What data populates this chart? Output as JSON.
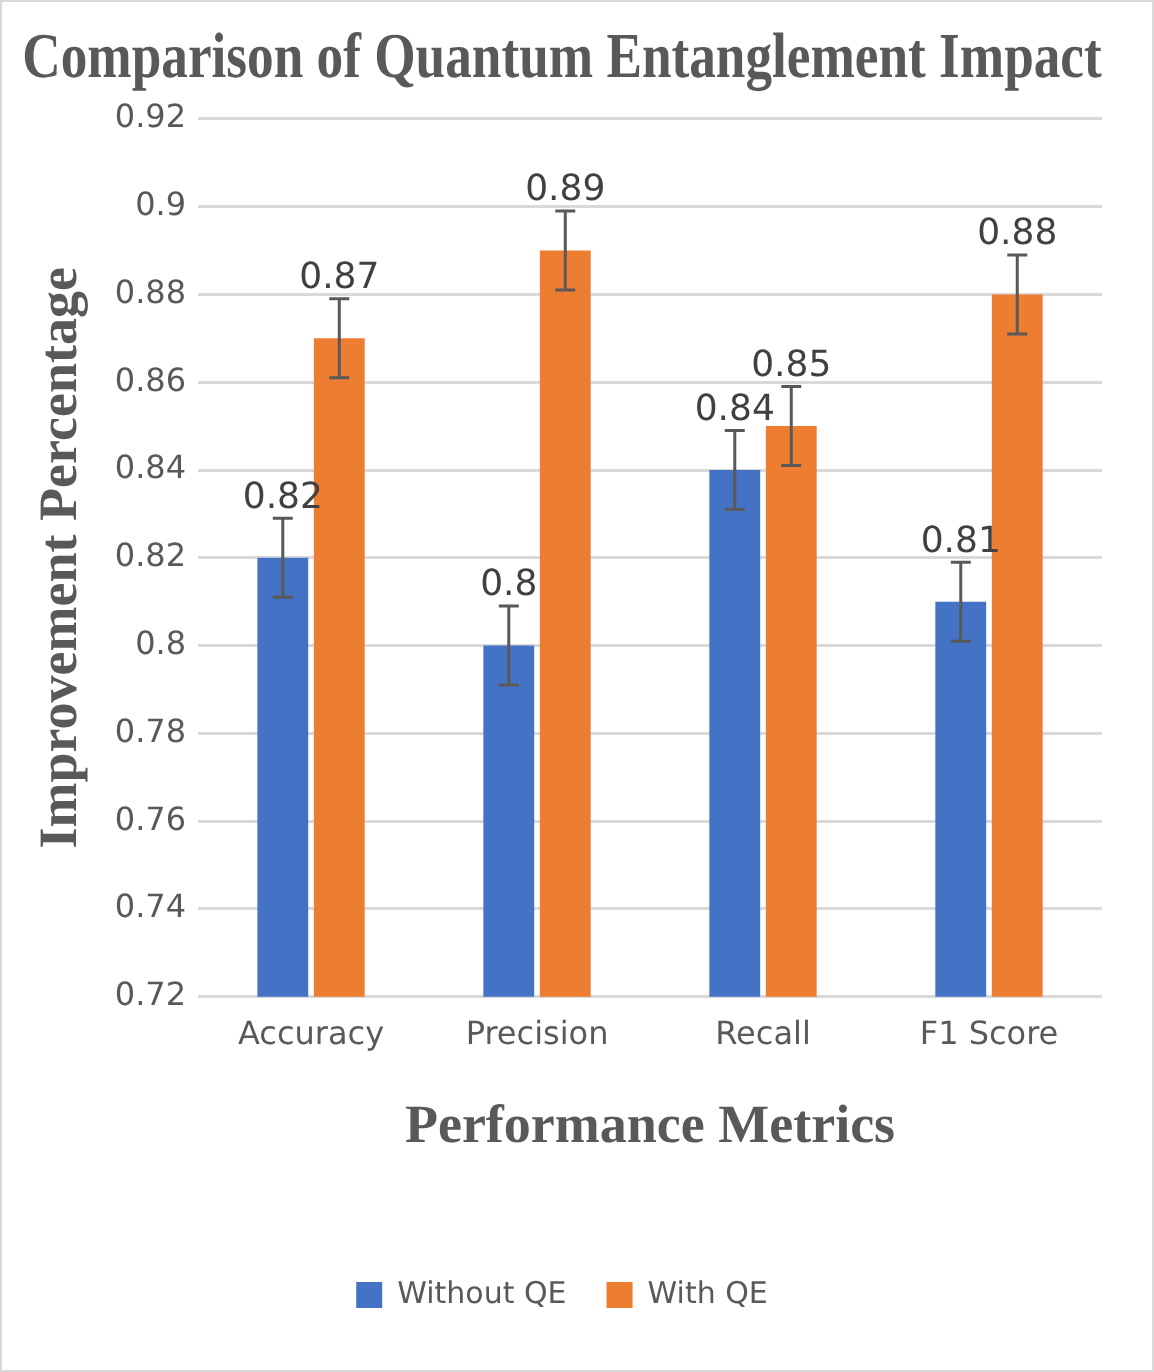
{
  "chart_data": {
    "type": "bar",
    "title": "Comparison of Quantum Entanglement Impact",
    "xlabel": "Performance Metrics",
    "ylabel": "Improvement Percentage",
    "categories": [
      "Accuracy",
      "Precision",
      "Recall",
      "F1 Score"
    ],
    "series": [
      {
        "name": "Without QE",
        "color": "#4472c4",
        "values": [
          0.82,
          0.8,
          0.84,
          0.81
        ],
        "errors": [
          0.009,
          0.009,
          0.009,
          0.009
        ]
      },
      {
        "name": "With QE",
        "color": "#ed7d31",
        "values": [
          0.87,
          0.89,
          0.85,
          0.88
        ],
        "errors": [
          0.009,
          0.009,
          0.009,
          0.009
        ]
      }
    ],
    "ylim": [
      0.72,
      0.92
    ],
    "yticks": [
      0.72,
      0.74,
      0.76,
      0.78,
      0.8,
      0.82,
      0.84,
      0.86,
      0.88,
      0.9,
      0.92
    ],
    "grid": "y",
    "legend": "bottom",
    "data_labels": true
  }
}
